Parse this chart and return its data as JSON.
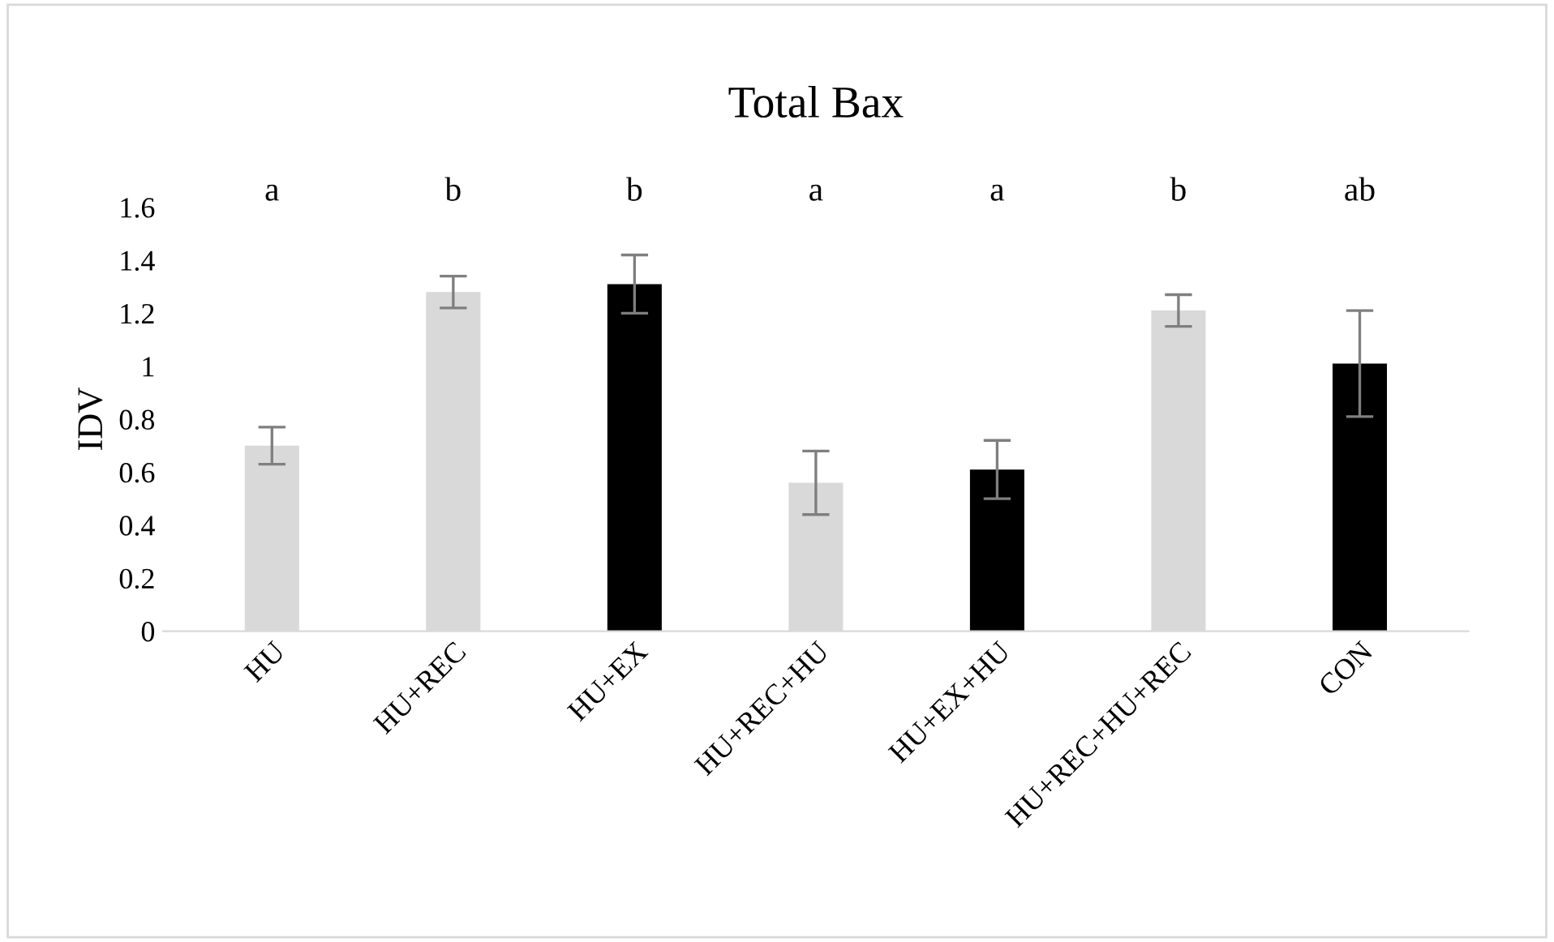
{
  "chart_data": {
    "type": "bar",
    "title": "Total Bax",
    "ylabel": "IDV",
    "categories": [
      "HU",
      "HU+REC",
      "HU+EX",
      "HU+REC+HU",
      "HU+EX+HU",
      "HU+REC+HU+REC",
      "CON"
    ],
    "values": [
      0.7,
      1.28,
      1.31,
      0.56,
      0.61,
      1.21,
      1.01
    ],
    "errors": [
      0.07,
      0.06,
      0.11,
      0.12,
      0.11,
      0.06,
      0.2
    ],
    "colors": [
      "#d9d9d9",
      "#d9d9d9",
      "#000000",
      "#d9d9d9",
      "#000000",
      "#d9d9d9",
      "#000000"
    ],
    "ylim": [
      0,
      1.6
    ],
    "yticks": [
      0,
      0.2,
      0.4,
      0.6,
      0.8,
      1,
      1.2,
      1.4,
      1.6
    ],
    "grid": false,
    "legend": false,
    "annotations": [
      "a",
      "b",
      "b",
      "a",
      "a",
      "b",
      "ab"
    ]
  }
}
